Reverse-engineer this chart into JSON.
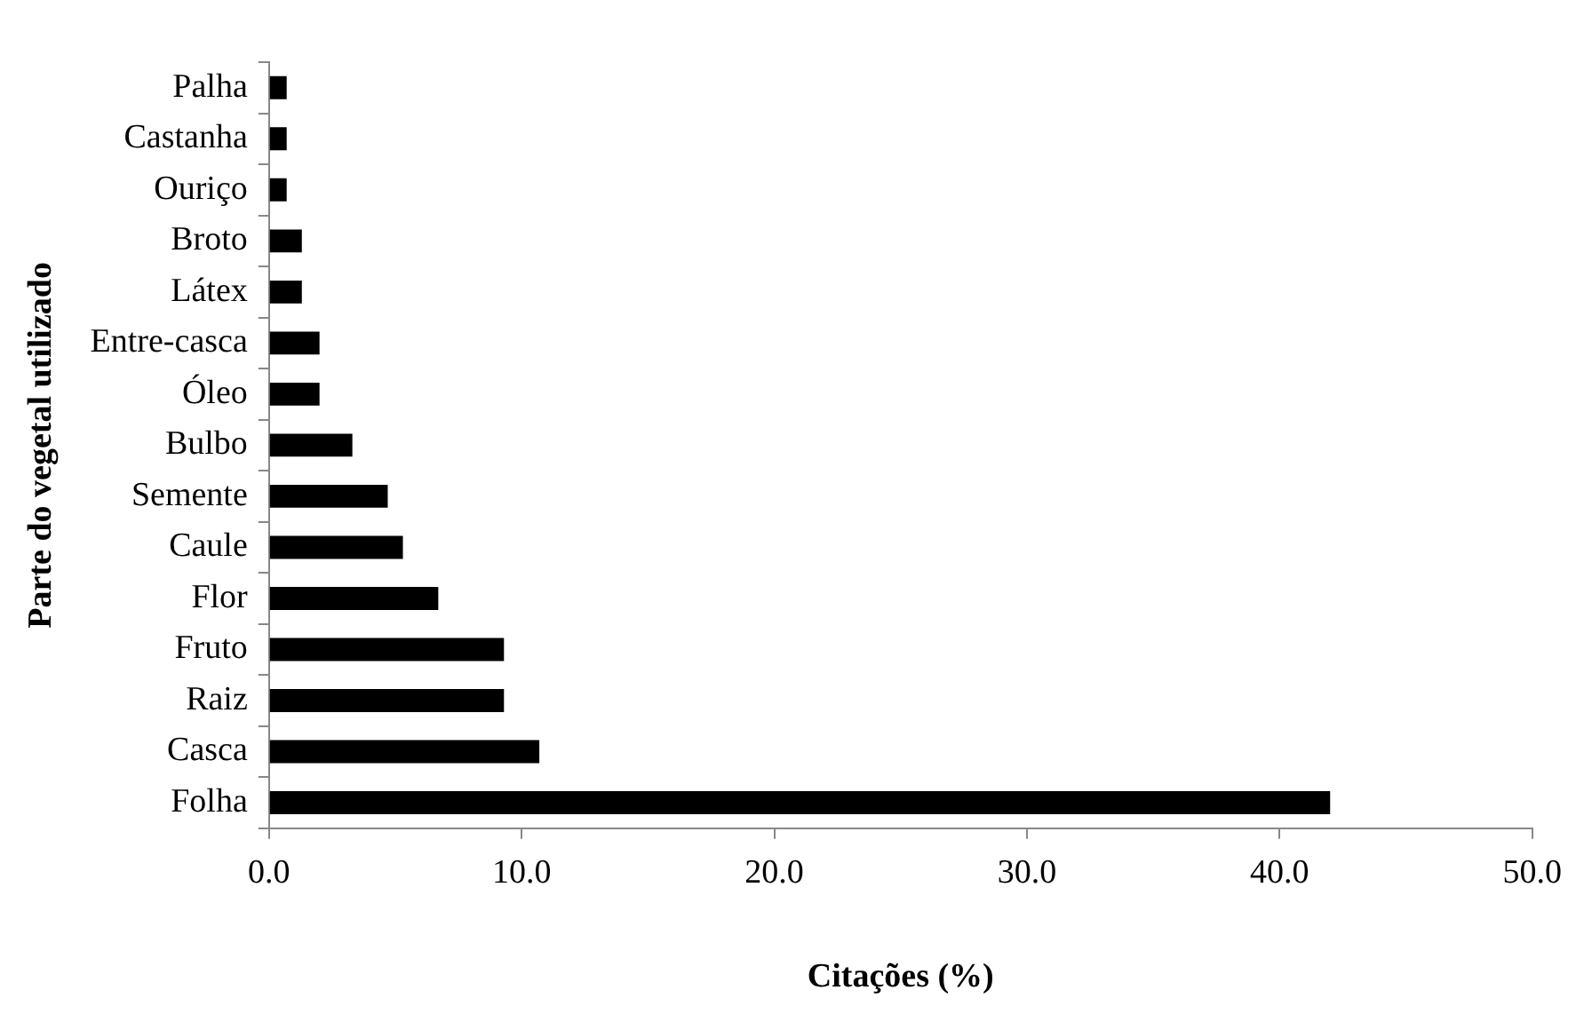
{
  "chart_data": {
    "type": "bar",
    "orientation": "horizontal",
    "xlabel": "Citações (%)",
    "ylabel": "Parte do vegetal utilizado",
    "categories": [
      "Palha",
      "Castanha",
      "Ouriço",
      "Broto",
      "Látex",
      "Entre-casca",
      "Óleo",
      "Bulbo",
      "Semente",
      "Caule",
      "Flor",
      "Fruto",
      "Raiz",
      "Casca",
      "Folha"
    ],
    "values": [
      0.7,
      0.7,
      0.7,
      1.3,
      1.3,
      2.0,
      2.0,
      3.3,
      4.7,
      5.3,
      6.7,
      9.3,
      9.3,
      10.7,
      42.0
    ],
    "color": "#000000",
    "xlim": [
      0,
      50
    ],
    "xticks": [
      {
        "value": 0,
        "label": "0.0"
      },
      {
        "value": 10,
        "label": "10.0"
      },
      {
        "value": 20,
        "label": "20.0"
      },
      {
        "value": 30,
        "label": "30.0"
      },
      {
        "value": 40,
        "label": "40.0"
      },
      {
        "value": 50,
        "label": "50.0"
      }
    ],
    "grid": false,
    "legend": false
  }
}
